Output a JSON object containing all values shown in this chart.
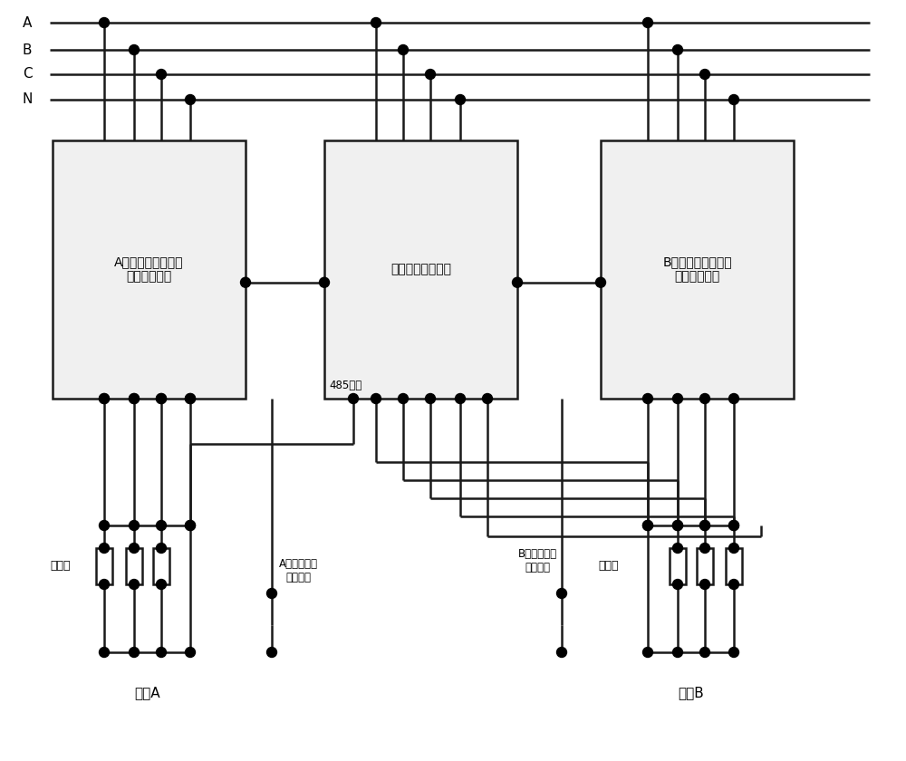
{
  "bg_color": "#ffffff",
  "line_color": "#1a1a1a",
  "box_fill": "#f0f0f0",
  "dot_color": "#000000",
  "font_color": "#000000",
  "bus_labels": [
    "A",
    "B",
    "C",
    "N"
  ],
  "box_A_label": "A路断路器型剩余电\n流动作保护器",
  "box_mid_label": "自动试跳检测装置",
  "box_B_label": "B路断路器型剩余电\n流动作保护器",
  "label_485": "485连接",
  "label_A_ground": "A路接地试跳\n检测接入",
  "label_B_ground": "B路接地试跳\n检测接入",
  "label_fuse_A": "熔断器",
  "label_fuse_B": "熔断器",
  "label_load_A": "负载A",
  "label_load_B": "负载B"
}
